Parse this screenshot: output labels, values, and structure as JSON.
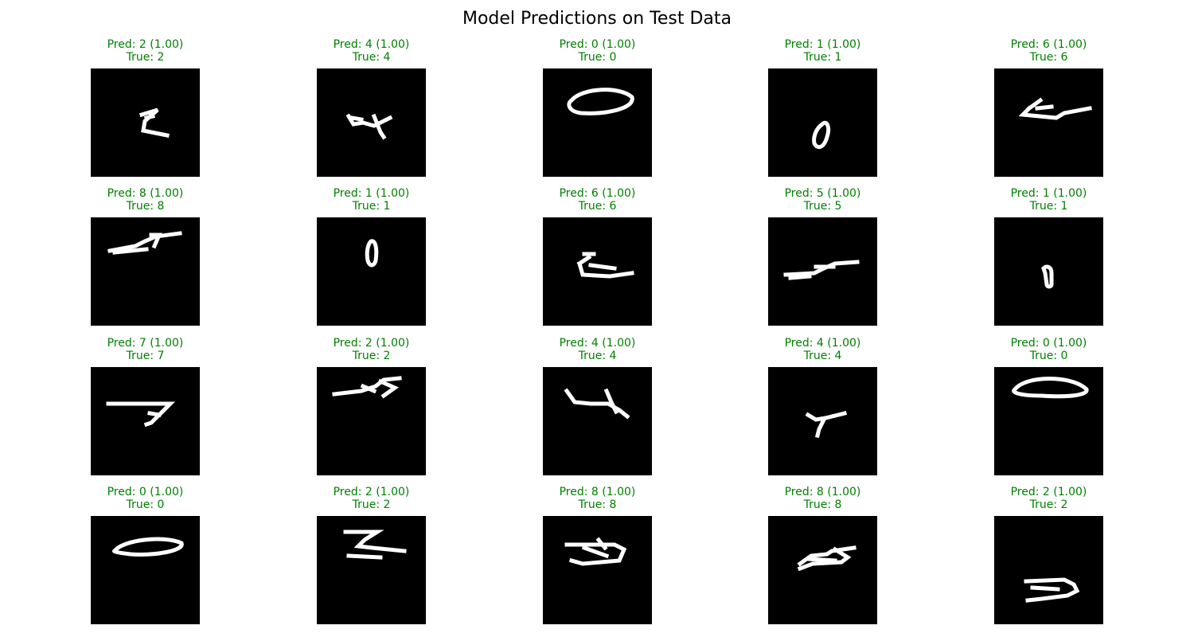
{
  "figure": {
    "title": "Model Predictions on Test Data"
  },
  "colors": {
    "correct": "#008000",
    "background": "#000000",
    "stroke": "#ffffff"
  },
  "chart_data": {
    "type": "image-grid",
    "rows": 4,
    "cols": 5,
    "panels": [
      {
        "pred": "Pred: 2 (1.00)",
        "truth": "True: 2",
        "digit": "2",
        "confidence": 1.0,
        "correct": true
      },
      {
        "pred": "Pred: 4 (1.00)",
        "truth": "True: 4",
        "digit": "4",
        "confidence": 1.0,
        "correct": true
      },
      {
        "pred": "Pred: 0 (1.00)",
        "truth": "True: 0",
        "digit": "0",
        "confidence": 1.0,
        "correct": true
      },
      {
        "pred": "Pred: 1 (1.00)",
        "truth": "True: 1",
        "digit": "1",
        "confidence": 1.0,
        "correct": true
      },
      {
        "pred": "Pred: 6 (1.00)",
        "truth": "True: 6",
        "digit": "6",
        "confidence": 1.0,
        "correct": true
      },
      {
        "pred": "Pred: 8 (1.00)",
        "truth": "True: 8",
        "digit": "8",
        "confidence": 1.0,
        "correct": true
      },
      {
        "pred": "Pred: 1 (1.00)",
        "truth": "True: 1",
        "digit": "1",
        "confidence": 1.0,
        "correct": true
      },
      {
        "pred": "Pred: 6 (1.00)",
        "truth": "True: 6",
        "digit": "6",
        "confidence": 1.0,
        "correct": true
      },
      {
        "pred": "Pred: 5 (1.00)",
        "truth": "True: 5",
        "digit": "5",
        "confidence": 1.0,
        "correct": true
      },
      {
        "pred": "Pred: 1 (1.00)",
        "truth": "True: 1",
        "digit": "1",
        "confidence": 1.0,
        "correct": true
      },
      {
        "pred": "Pred: 7 (1.00)",
        "truth": "True: 7",
        "digit": "7",
        "confidence": 1.0,
        "correct": true
      },
      {
        "pred": "Pred: 2 (1.00)",
        "truth": "True: 2",
        "digit": "2",
        "confidence": 1.0,
        "correct": true
      },
      {
        "pred": "Pred: 4 (1.00)",
        "truth": "True: 4",
        "digit": "4",
        "confidence": 1.0,
        "correct": true
      },
      {
        "pred": "Pred: 4 (1.00)",
        "truth": "True: 4",
        "digit": "4",
        "confidence": 1.0,
        "correct": true
      },
      {
        "pred": "Pred: 0 (1.00)",
        "truth": "True: 0",
        "digit": "0",
        "confidence": 1.0,
        "correct": true
      },
      {
        "pred": "Pred: 0 (1.00)",
        "truth": "True: 0",
        "digit": "0",
        "confidence": 1.0,
        "correct": true
      },
      {
        "pred": "Pred: 2 (1.00)",
        "truth": "True: 2",
        "digit": "2",
        "confidence": 1.0,
        "correct": true
      },
      {
        "pred": "Pred: 8 (1.00)",
        "truth": "True: 8",
        "digit": "8",
        "confidence": 1.0,
        "correct": true
      },
      {
        "pred": "Pred: 8 (1.00)",
        "truth": "True: 8",
        "digit": "8",
        "confidence": 1.0,
        "correct": true
      },
      {
        "pred": "Pred: 2 (1.00)",
        "truth": "True: 2",
        "digit": "2",
        "confidence": 1.0,
        "correct": true
      }
    ]
  }
}
